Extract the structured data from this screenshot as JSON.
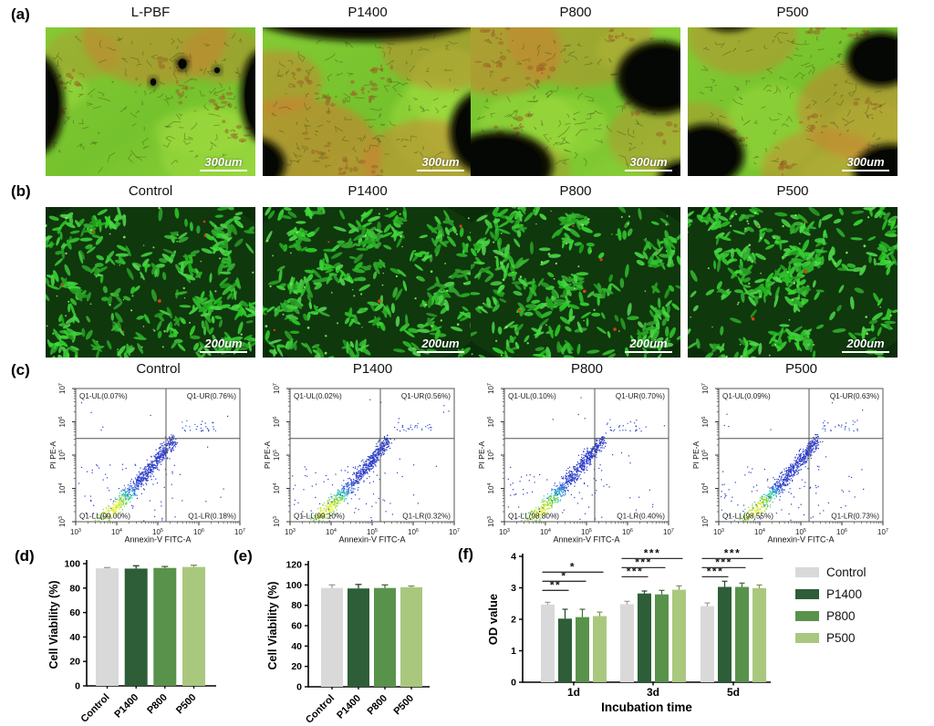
{
  "panels": {
    "a": {
      "label": "(a)",
      "titles": [
        "L-PBF",
        "P1400",
        "P800",
        "P500"
      ],
      "scale_bar_label": "300um"
    },
    "b": {
      "label": "(b)",
      "titles": [
        "Control",
        "P1400",
        "P800",
        "P500"
      ],
      "scale_bar_label": "200um"
    },
    "c": {
      "label": "(c)",
      "titles": [
        "Control",
        "P1400",
        "P800",
        "P500"
      ],
      "xlabel": "Annexin-V FITC-A",
      "ylabel": "PI PE-A",
      "tick_exponents": [
        3,
        4,
        5,
        6,
        7
      ],
      "plots": [
        {
          "ul": "Q1-UL(0.07%)",
          "ur": "Q1-UR(0.76%)",
          "ll": "Q1-LL(99.00%)",
          "lr": "Q1-LR(0.18%)"
        },
        {
          "ul": "Q1-UL(0.02%)",
          "ur": "Q1-UR(0.56%)",
          "ll": "Q1-LL(99.10%)",
          "lr": "Q1-LR(0.32%)"
        },
        {
          "ul": "Q1-UL(0.10%)",
          "ur": "Q1-UR(0.70%)",
          "ll": "Q1-LL(98.80%)",
          "lr": "Q1-LR(0.40%)"
        },
        {
          "ul": "Q1-UL(0.09%)",
          "ur": "Q1-UR(0.63%)",
          "ll": "Q1-LL(98.55%)",
          "lr": "Q1-LR(0.73%)"
        }
      ]
    },
    "d": {
      "label": "(d)"
    },
    "e": {
      "label": "(e)"
    },
    "f": {
      "label": "(f)"
    }
  },
  "colors": {
    "control": "#d9d9d9",
    "p1400": "#2d5e37",
    "p800": "#59924b",
    "p500": "#a9c87e"
  },
  "chart_data": [
    {
      "panel": "d",
      "type": "bar",
      "categories": [
        "Control",
        "P1400",
        "P800",
        "P500"
      ],
      "values": [
        96.2,
        96.0,
        96.5,
        97.3
      ],
      "errors": [
        0.6,
        2.3,
        1.2,
        1.4
      ],
      "colors": [
        "#d9d9d9",
        "#2d5e37",
        "#59924b",
        "#a9c87e"
      ],
      "ylabel": "Cell Viability (%)",
      "ylim": [
        0,
        100
      ],
      "yticks": [
        0,
        20,
        40,
        60,
        80,
        100
      ],
      "grid": false
    },
    {
      "panel": "e",
      "type": "bar",
      "categories": [
        "Control",
        "P1400",
        "P800",
        "P500"
      ],
      "values": [
        97.0,
        96.5,
        97.0,
        97.8
      ],
      "errors": [
        3.0,
        4.0,
        3.0,
        1.2
      ],
      "colors": [
        "#d9d9d9",
        "#2d5e37",
        "#59924b",
        "#a9c87e"
      ],
      "ylabel": "Cell Viability (%)",
      "ylim": [
        0,
        120
      ],
      "yticks": [
        0,
        20,
        40,
        60,
        80,
        100,
        120
      ],
      "grid": false
    },
    {
      "panel": "f",
      "type": "grouped-bar",
      "categories": [
        "1d",
        "3d",
        "5d"
      ],
      "series": [
        {
          "name": "Control",
          "color": "#d9d9d9",
          "values": [
            2.47,
            2.48,
            2.42
          ],
          "errors": [
            0.07,
            0.09,
            0.1
          ]
        },
        {
          "name": "P1400",
          "color": "#2d5e37",
          "values": [
            2.02,
            2.82,
            3.03
          ],
          "errors": [
            0.3,
            0.08,
            0.18
          ]
        },
        {
          "name": "P800",
          "color": "#59924b",
          "values": [
            2.07,
            2.79,
            3.03
          ],
          "errors": [
            0.25,
            0.13,
            0.12
          ]
        },
        {
          "name": "P500",
          "color": "#a9c87e",
          "values": [
            2.1,
            2.94,
            2.99
          ],
          "errors": [
            0.13,
            0.12,
            0.1
          ]
        }
      ],
      "significance": [
        {
          "group": "1d",
          "stars": [
            "**",
            "*",
            "*"
          ]
        },
        {
          "group": "3d",
          "stars": [
            "***",
            "***",
            "***"
          ]
        },
        {
          "group": "5d",
          "stars": [
            "***",
            "***",
            "***"
          ]
        }
      ],
      "xlabel": "Incubation time",
      "ylabel": "OD value",
      "ylim": [
        0,
        4
      ],
      "yticks": [
        0,
        1,
        2,
        3,
        4
      ],
      "legend_position": "right"
    }
  ]
}
